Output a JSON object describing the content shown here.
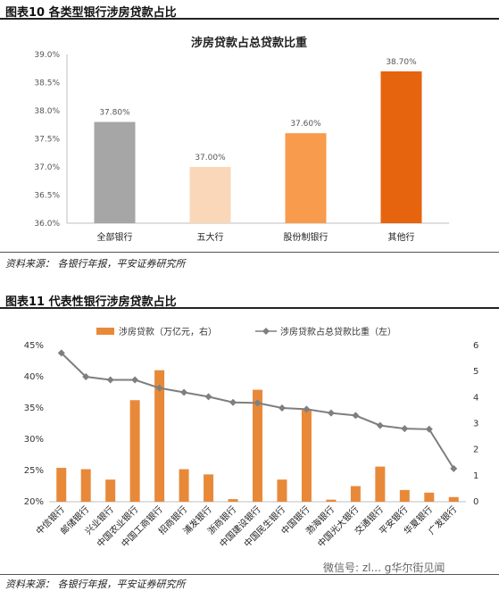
{
  "figure1": {
    "header": "图表10    各类型银行涉房贷款占比",
    "source": "资料来源：  各银行年报，平安证券研究所"
  },
  "figure2": {
    "header": "图表11    代表性银行涉房贷款占比",
    "source": "资料来源：  各银行年报，平安证券研究所"
  },
  "watermark": "微信号: zl... g华尔街见闻",
  "chart_data": [
    {
      "type": "bar",
      "title": "涉房贷款占总贷款比重",
      "categories": [
        "全部银行",
        "五大行",
        "股份制银行",
        "其他行"
      ],
      "values": [
        37.8,
        37.0,
        37.6,
        38.7
      ],
      "value_labels": [
        "37.80%",
        "37.00%",
        "37.60%",
        "38.70%"
      ],
      "ylim": [
        36.0,
        39.0
      ],
      "yticks": [
        "36.0%",
        "36.5%",
        "37.0%",
        "37.5%",
        "38.0%",
        "38.5%",
        "39.0%"
      ],
      "colors": [
        "#a6a6a6",
        "#fad7b9",
        "#f89b4c",
        "#e6640e"
      ],
      "grid": false,
      "legend": "none"
    },
    {
      "type": "bar",
      "categories": [
        "中信银行",
        "邮储银行",
        "兴业银行",
        "中国农业银行",
        "中国工商银行",
        "招商银行",
        "浦发银行",
        "浙商银行",
        "中国建设银行",
        "中国民生银行",
        "中国银行",
        "渤海银行",
        "中国光大银行",
        "交通银行",
        "平安银行",
        "华夏银行",
        "广发银行"
      ],
      "series": [
        {
          "name": "涉房贷款（万亿元，右）",
          "type": "bar",
          "axis": "right",
          "values": [
            1.3,
            1.25,
            0.85,
            3.9,
            5.05,
            1.25,
            1.05,
            0.1,
            4.3,
            0.85,
            3.55,
            0.08,
            0.6,
            1.35,
            0.45,
            0.35,
            0.18
          ],
          "color": "#e8893a"
        },
        {
          "name": "涉房贷款占总贷款比重（左）",
          "type": "line",
          "axis": "left",
          "values": [
            43.8,
            40.0,
            39.5,
            39.5,
            38.2,
            37.5,
            36.8,
            35.9,
            35.8,
            35.0,
            34.8,
            34.2,
            33.8,
            32.2,
            31.7,
            31.6,
            25.3
          ],
          "color": "#7f7f7f"
        }
      ],
      "ylim_left": [
        20,
        45
      ],
      "yticks_left": [
        "20%",
        "25%",
        "30%",
        "35%",
        "40%",
        "45%"
      ],
      "ylim_right": [
        0,
        6
      ],
      "yticks_right": [
        "0",
        "1",
        "2",
        "3",
        "4",
        "5",
        "6"
      ],
      "grid": false,
      "legend": "top-center"
    }
  ]
}
